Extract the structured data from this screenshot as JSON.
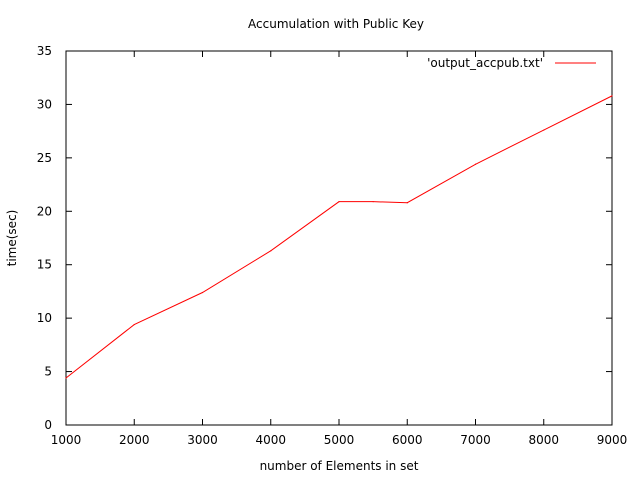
{
  "chart_data": {
    "type": "line",
    "title": "Accumulation with Public Key",
    "xlabel": "number of Elements in set",
    "ylabel": "time(sec)",
    "xlim": [
      1000,
      9000
    ],
    "ylim": [
      0,
      35
    ],
    "xticks": [
      1000,
      2000,
      3000,
      4000,
      5000,
      6000,
      7000,
      8000,
      9000
    ],
    "yticks": [
      0,
      5,
      10,
      15,
      20,
      25,
      30,
      35
    ],
    "grid": false,
    "legend_position": "top-right",
    "series": [
      {
        "name": "'output_accpub.txt'",
        "color": "#ff0000",
        "x": [
          1000,
          2000,
          3000,
          4000,
          5000,
          5500,
          6000,
          7000,
          8000,
          9000
        ],
        "y": [
          4.4,
          9.4,
          12.4,
          16.3,
          20.9,
          20.9,
          20.8,
          24.4,
          27.6,
          30.8
        ]
      }
    ]
  }
}
